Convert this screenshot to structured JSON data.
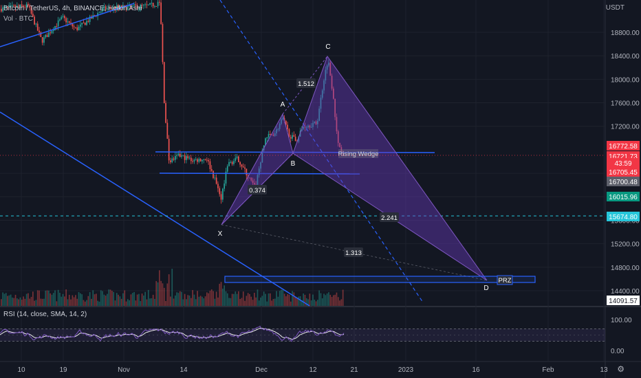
{
  "header": {
    "title": "Bitcoin / TetherUS, 4h, BINANCE, Heikin Ashi",
    "volume": "Vol · BTC",
    "rsi": "RSI (14, close, SMA, 14, 2)",
    "currency": "USDT"
  },
  "chart_data": {
    "type": "candlestick",
    "price_axis": {
      "range": [
        14000,
        19300
      ],
      "ticks": [
        "18800.00",
        "18400.00",
        "18000.00",
        "17600.00",
        "17200.00",
        "16400.00",
        "16000.00",
        "15600.00",
        "15200.00",
        "14800.00",
        "14400.00"
      ]
    },
    "rsi_axis": {
      "range": [
        -10,
        110
      ],
      "ticks": [
        "100.00",
        "0.00"
      ],
      "bands": [
        70,
        30
      ]
    },
    "x_ticks": [
      "10",
      "19",
      "Nov",
      "14",
      "Dec",
      "12",
      "21",
      "2023",
      "16",
      "Feb",
      "13"
    ],
    "price_labels": [
      {
        "text": "16772.58",
        "color": "#f23645"
      },
      {
        "text": "16721.73",
        "color": "#f23645"
      },
      {
        "text": "43:59",
        "color": "#f23645"
      },
      {
        "text": "16705.45",
        "color": "#f23645"
      },
      {
        "text": "16700.48",
        "color": "#5d606b"
      },
      {
        "text": "16015.96",
        "color": "#089981"
      },
      {
        "text": "15674.80",
        "color": "#26c6da"
      },
      {
        "text": "14091.57",
        "color": "#ffffff"
      }
    ],
    "pattern": {
      "name": "Bat / harmonic XABCD",
      "points": [
        {
          "label": "X",
          "price": 15640
        },
        {
          "label": "A",
          "price": 17420
        },
        {
          "label": "B",
          "price": 16860
        },
        {
          "label": "C",
          "price": 18380
        },
        {
          "label": "D",
          "price": 14620
        }
      ],
      "ratios": [
        "1.512",
        "0.374",
        "2.241",
        "1.313"
      ],
      "prz_label": "PRZ",
      "wedge_label": "Rising Wedge"
    },
    "levels": [
      {
        "name": "support",
        "price": 15674.8
      }
    ],
    "grid": true
  }
}
